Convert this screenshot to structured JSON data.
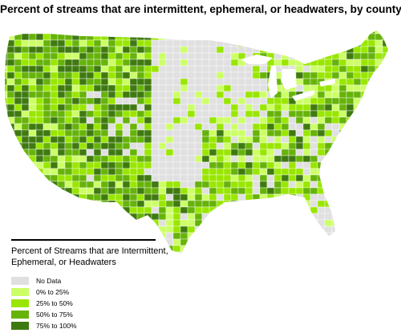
{
  "title": "Percent of streams that are intermittent, ephemeral, or headwaters, by county",
  "legend": {
    "title": "Percent of Streams that are Intermittent, Ephemeral, or Headwaters",
    "items": [
      {
        "label": "No Data",
        "color": "#e0e0e0"
      },
      {
        "label": "0% to 25%",
        "color": "#ccff66"
      },
      {
        "label": "25% to 50%",
        "color": "#99e600"
      },
      {
        "label": "50% to 75%",
        "color": "#66b30a"
      },
      {
        "label": "75% to 100%",
        "color": "#3f7a10"
      }
    ]
  },
  "map": {
    "region": "contiguous-united-states",
    "unit": "county",
    "background_color": "#ffffff",
    "border_color": "#ffffff"
  }
}
